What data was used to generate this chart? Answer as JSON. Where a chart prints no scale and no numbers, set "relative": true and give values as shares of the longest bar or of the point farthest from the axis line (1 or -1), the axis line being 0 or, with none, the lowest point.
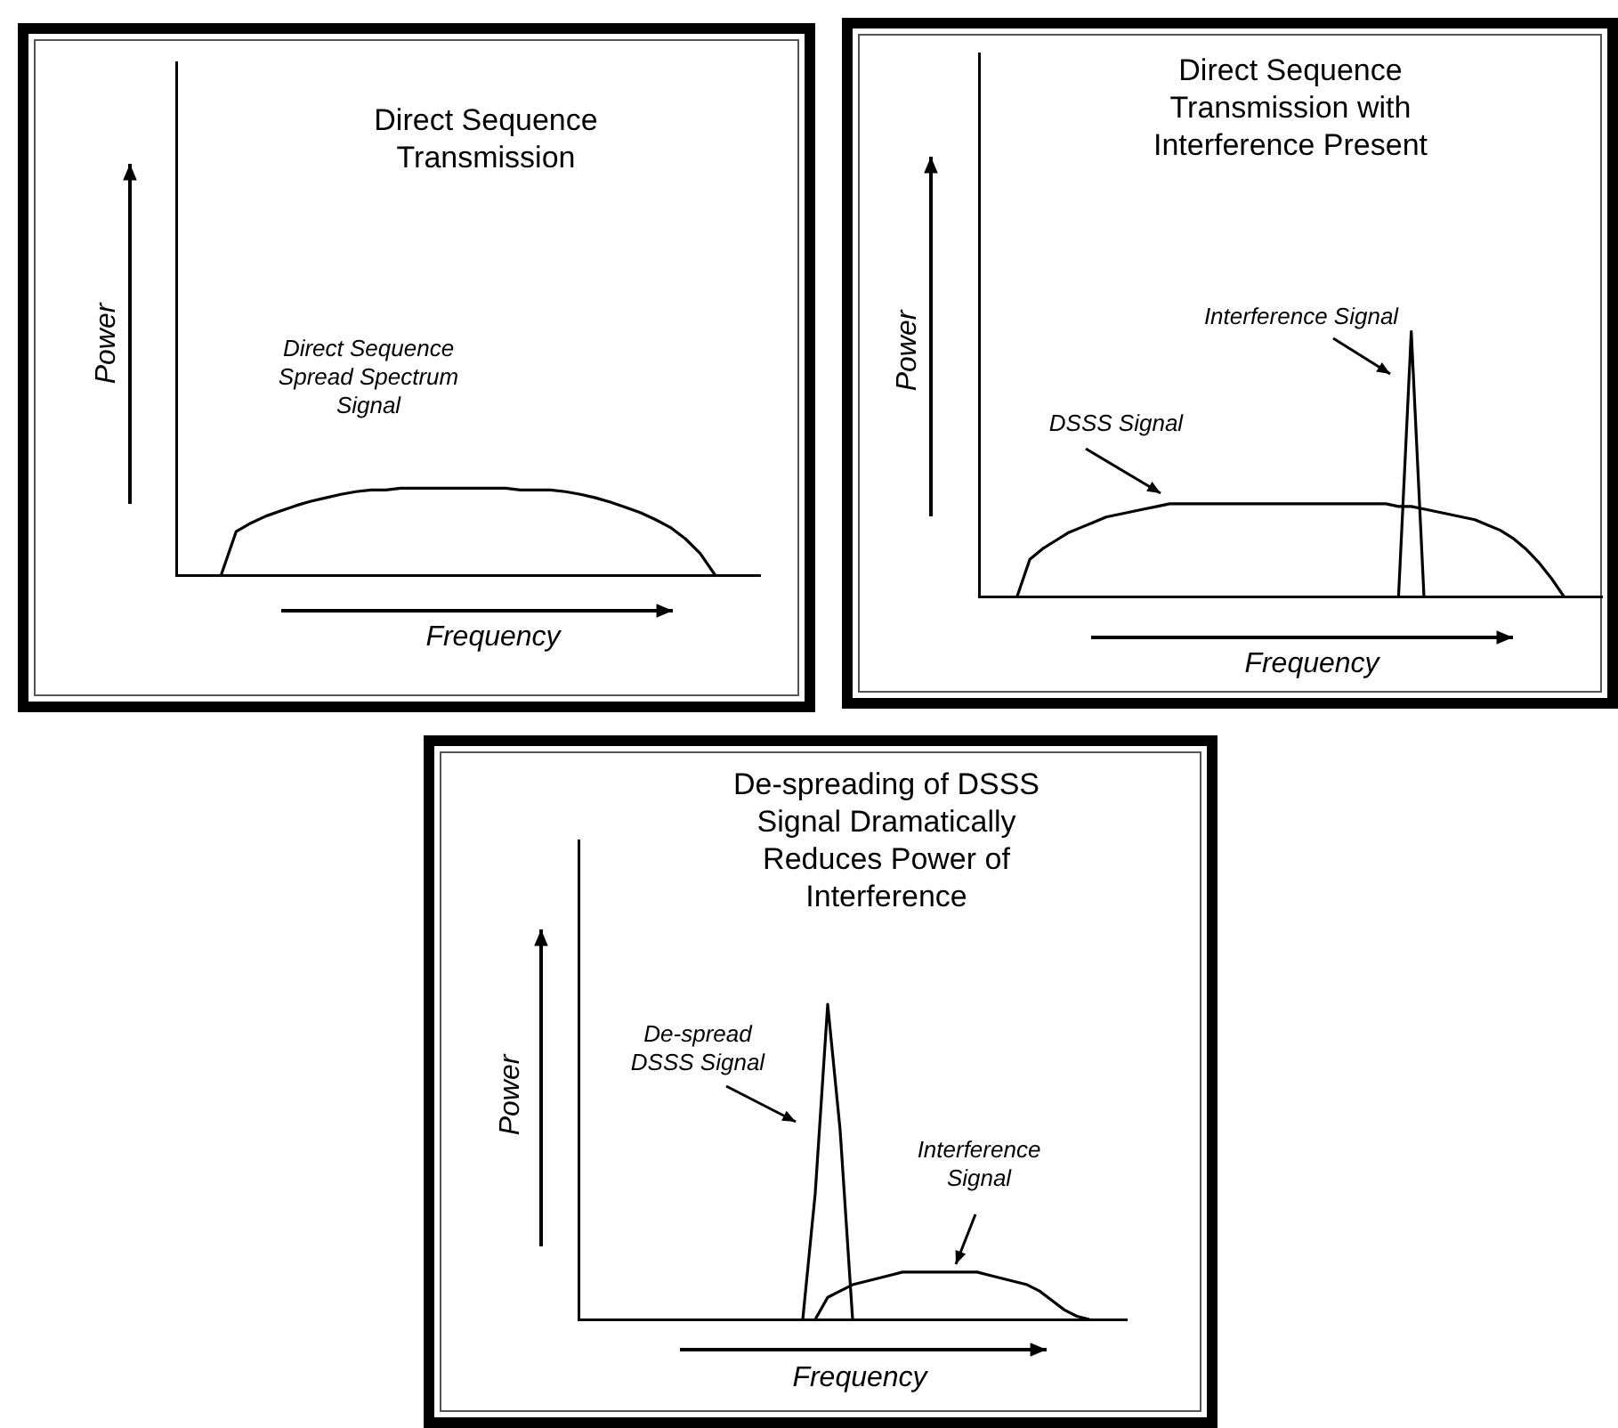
{
  "chart_data": [
    {
      "type": "line",
      "title": "Direct Sequence Transmission",
      "xlabel": "Frequency",
      "ylabel": "Power",
      "relative": true,
      "legend": false,
      "categories": [
        null,
        null,
        null,
        null,
        null,
        null,
        null,
        null,
        null,
        null,
        null,
        null,
        null,
        null,
        null,
        null,
        null,
        null,
        null,
        null,
        null,
        null,
        null,
        null,
        null,
        null,
        null,
        null,
        null,
        null,
        null,
        null,
        null,
        null,
        null,
        null,
        null,
        null,
        null,
        null
      ],
      "series": [
        {
          "name": "Direct Sequence Spread Spectrum Signal",
          "color": "#000000",
          "values": [
            null,
            null,
            null,
            0,
            0.5,
            0.6,
            0.68,
            0.74,
            0.8,
            0.85,
            0.89,
            0.93,
            0.96,
            0.98,
            0.98,
            1,
            1,
            1,
            1,
            1,
            1,
            1,
            1,
            0.98,
            0.98,
            0.98,
            0.96,
            0.93,
            0.89,
            0.84,
            0.78,
            0.72,
            0.64,
            0.55,
            0.42,
            0.25,
            0,
            null,
            null,
            null
          ]
        }
      ]
    },
    {
      "type": "line",
      "title": "Direct Sequence Transmission with Interference Present",
      "xlabel": "Frequency",
      "ylabel": "Power",
      "relative": true,
      "legend": false,
      "categories": [
        null,
        null,
        null,
        null,
        null,
        null,
        null,
        null,
        null,
        null,
        null,
        null,
        null,
        null,
        null,
        null,
        null,
        null,
        null,
        null,
        null,
        null,
        null,
        null,
        null,
        null,
        null,
        null,
        null,
        null,
        null,
        null,
        null,
        null,
        null,
        null,
        null,
        null,
        null,
        null,
        null,
        null,
        null,
        null,
        null,
        null,
        null,
        null,
        null,
        null
      ],
      "series": [
        {
          "name": "DSSS Signal",
          "color": "#000000",
          "values": [
            null,
            null,
            null,
            0,
            0.14,
            0.18,
            0.21,
            0.24,
            0.26,
            0.28,
            0.3,
            0.31,
            0.32,
            0.33,
            0.34,
            0.35,
            0.35,
            0.35,
            0.35,
            0.35,
            0.35,
            0.35,
            0.35,
            0.35,
            0.35,
            0.35,
            0.35,
            0.35,
            0.35,
            0.35,
            0.35,
            0.35,
            0.35,
            0.34,
            0.34,
            0.33,
            0.32,
            0.31,
            0.3,
            0.29,
            0.27,
            0.25,
            0.22,
            0.18,
            0.13,
            0.07,
            0,
            null,
            null,
            null
          ]
        },
        {
          "name": "Interference Signal",
          "color": "#000000",
          "values": [
            null,
            null,
            null,
            null,
            null,
            null,
            null,
            null,
            null,
            null,
            null,
            null,
            null,
            null,
            null,
            null,
            null,
            null,
            null,
            null,
            null,
            null,
            null,
            null,
            null,
            null,
            null,
            null,
            null,
            null,
            null,
            null,
            null,
            0,
            1,
            0,
            null,
            null,
            null,
            null,
            null,
            null,
            null,
            null,
            null,
            null,
            null,
            null,
            null,
            null
          ]
        }
      ]
    },
    {
      "type": "line",
      "title": "De-spreading of DSSS Signal Dramatically Reduces Power of Interference",
      "xlabel": "Frequency",
      "ylabel": "Power",
      "relative": true,
      "legend": false,
      "categories": [
        null,
        null,
        null,
        null,
        null,
        null,
        null,
        null,
        null,
        null,
        null,
        null,
        null,
        null,
        null,
        null,
        null,
        null,
        null,
        null,
        null,
        null,
        null,
        null,
        null,
        null,
        null,
        null,
        null,
        null,
        null,
        null,
        null,
        null,
        null,
        null,
        null,
        null,
        null,
        null,
        null,
        null,
        null,
        null,
        null
      ],
      "series": [
        {
          "name": "De-spread DSSS Signal",
          "color": "#000000",
          "values": [
            null,
            null,
            null,
            null,
            null,
            null,
            null,
            null,
            null,
            null,
            null,
            null,
            null,
            null,
            null,
            null,
            null,
            null,
            0,
            0.4,
            1,
            0.6,
            0,
            null,
            null,
            null,
            null,
            null,
            null,
            null,
            null,
            null,
            null,
            null,
            null,
            null,
            null,
            null,
            null,
            null,
            null,
            null,
            null,
            null,
            null
          ]
        },
        {
          "name": "Interference Signal",
          "color": "#000000",
          "values": [
            null,
            null,
            null,
            null,
            null,
            null,
            null,
            null,
            null,
            null,
            null,
            null,
            null,
            null,
            null,
            null,
            null,
            null,
            null,
            0,
            0.07,
            0.09,
            0.11,
            0.12,
            0.13,
            0.14,
            0.15,
            0.15,
            0.15,
            0.15,
            0.15,
            0.15,
            0.15,
            0.14,
            0.13,
            0.12,
            0.11,
            0.09,
            0.06,
            0.03,
            0.01,
            0,
            null,
            null,
            null
          ]
        }
      ]
    }
  ]
}
